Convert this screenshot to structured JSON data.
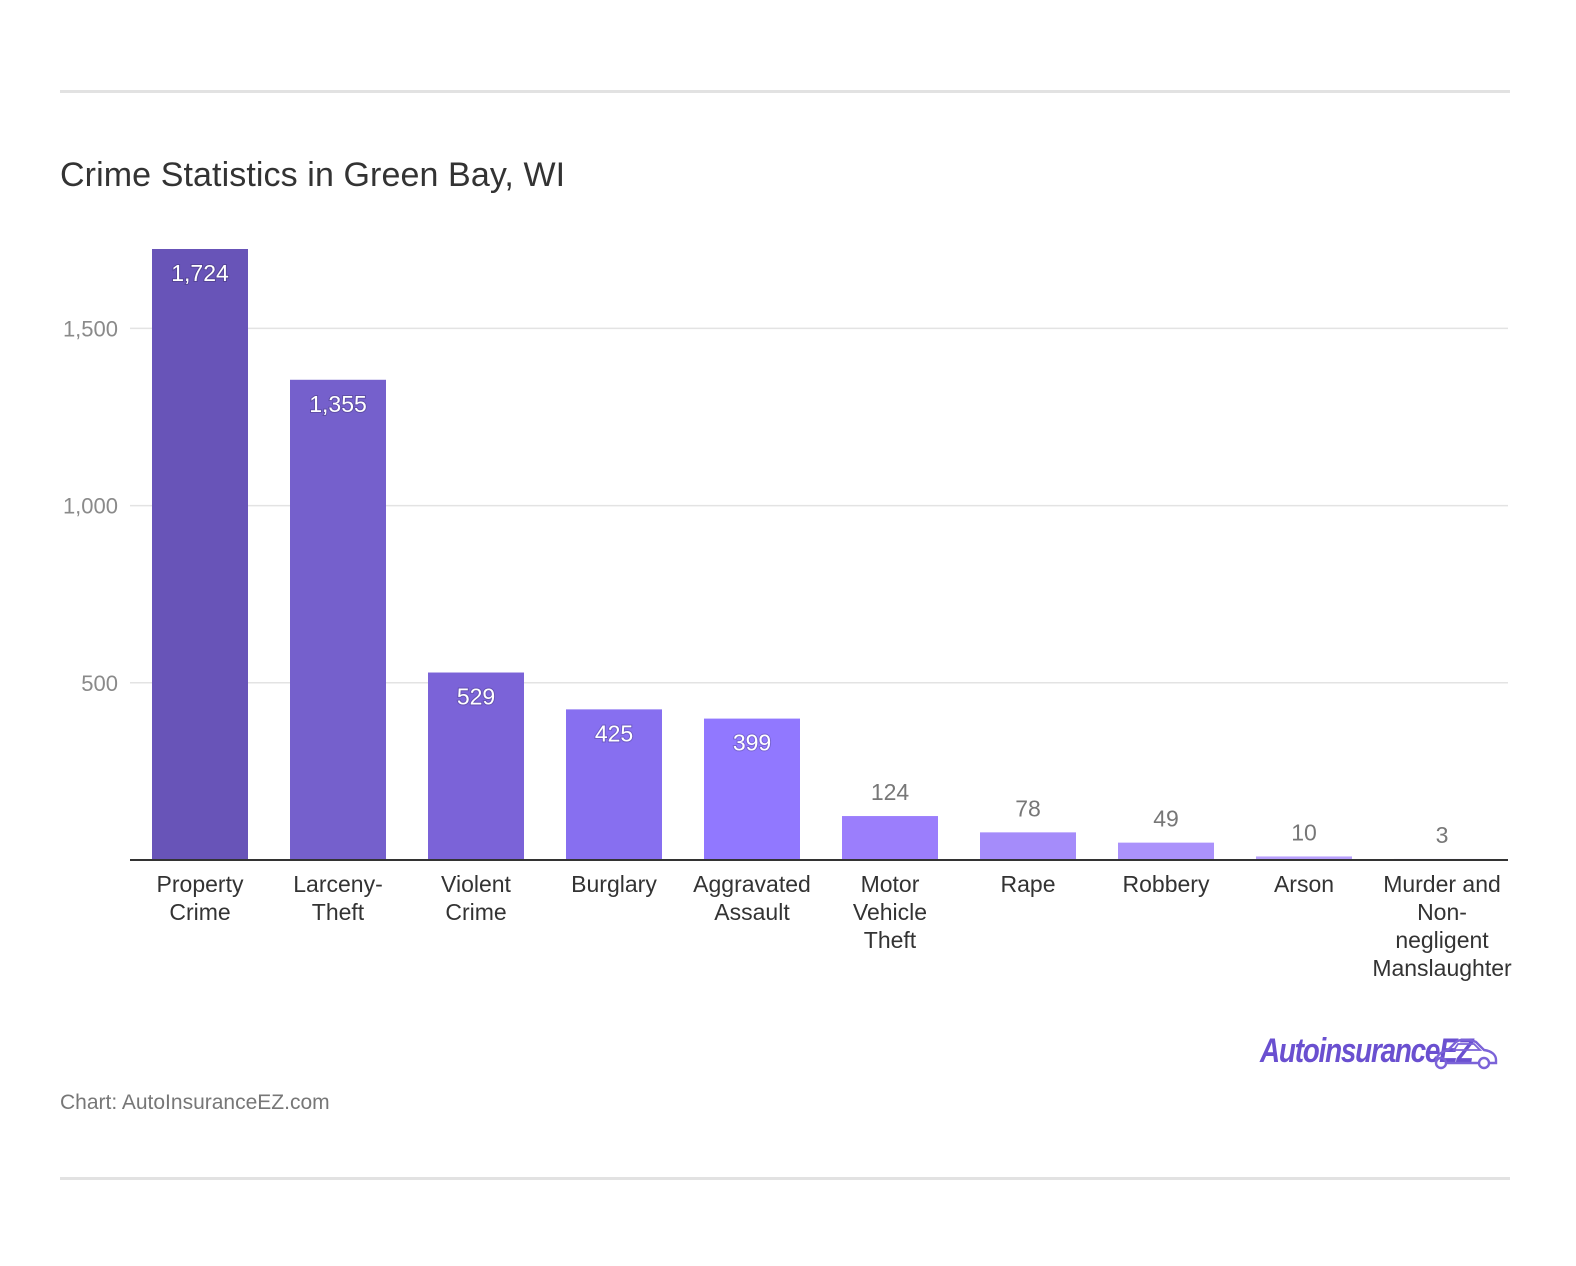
{
  "title": "Crime Statistics in Green Bay, WI",
  "source": "Chart: AutoInsuranceEZ.com",
  "logo_text": "AutoinsuranceEZ",
  "colors": {
    "grid": "#e3e3e3",
    "axis": "#333333",
    "tick_label": "#8a8a8a",
    "category_label": "#333333",
    "bar_gradient": [
      "#6854b8",
      "#7560cc",
      "#7b63d8",
      "#876ff0",
      "#9178ff",
      "#9b7efc",
      "#a58cfa",
      "#ab92fb",
      "#b79ffc",
      "#c1abfd"
    ]
  },
  "chart_data": {
    "type": "bar",
    "title": "Crime Statistics in Green Bay, WI",
    "categories": [
      [
        "Property",
        "Crime"
      ],
      [
        "Larceny-",
        "Theft"
      ],
      [
        "Violent",
        "Crime"
      ],
      [
        "Burglary"
      ],
      [
        "Aggravated",
        "Assault"
      ],
      [
        "Motor",
        "Vehicle",
        "Theft"
      ],
      [
        "Rape"
      ],
      [
        "Robbery"
      ],
      [
        "Arson"
      ],
      [
        "Murder and",
        "Non-",
        "negligent",
        "Manslaughter"
      ]
    ],
    "values": [
      1724,
      1355,
      529,
      425,
      399,
      124,
      78,
      49,
      10,
      3
    ],
    "value_labels": [
      "1,724",
      "1,355",
      "529",
      "425",
      "399",
      "124",
      "78",
      "49",
      "10",
      "3"
    ],
    "yticks": [
      500,
      1000,
      1500
    ],
    "ytick_labels": [
      "500",
      "1,000",
      "1,500"
    ],
    "ylim": [
      0,
      1724
    ],
    "grid": true,
    "legend": "none",
    "xlabel": "",
    "ylabel": ""
  }
}
